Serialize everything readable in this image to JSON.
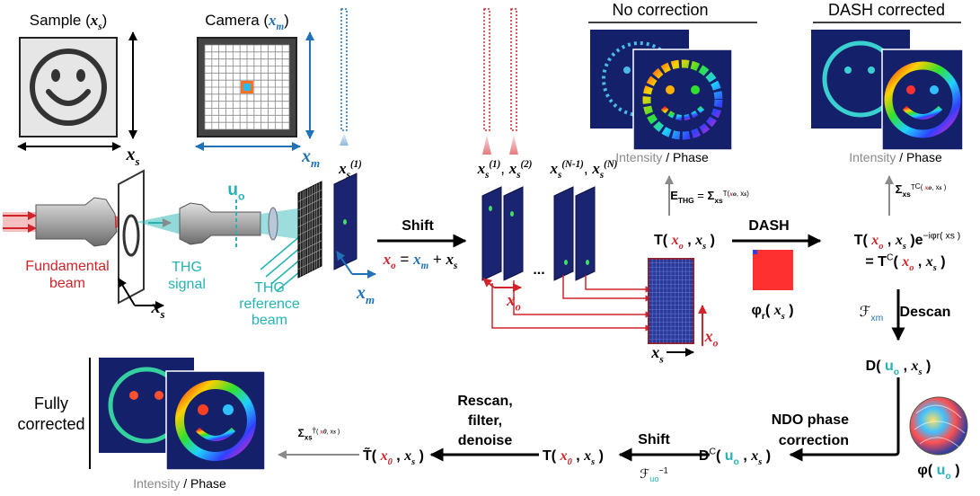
{
  "labels": {
    "sample_label": [
      "Sample (",
      "x",
      "s",
      ")"
    ],
    "camera_label": [
      "Camera (",
      "x",
      "m",
      ")"
    ],
    "sample_axis": [
      "x",
      "s"
    ],
    "camera_axis": [
      "x",
      "m"
    ],
    "plane1_label": [
      "x",
      "s",
      "(1)"
    ],
    "planes12_label": [
      "x",
      "s",
      "(1)",
      ", ",
      "x",
      "s",
      "(2)"
    ],
    "planesN_label": [
      "x",
      "s",
      "(N-1)",
      ", ",
      "x",
      "s",
      "(N)"
    ],
    "no_correction": [
      "No correction"
    ],
    "dash_corrected": [
      "DASH corrected"
    ],
    "ip_no_correction": [
      "Intensity",
      " / Phase"
    ],
    "ip_dash": [
      "Intensity",
      " / Phase"
    ],
    "ip_fully": [
      "Intensity",
      " / Phase"
    ],
    "uo_label": [
      "u",
      "o"
    ],
    "fundamental_1": [
      "Fundamental"
    ],
    "fundamental_2": [
      "beam"
    ],
    "thg_signal_1": [
      "THG"
    ],
    "thg_signal_2": [
      "signal"
    ],
    "thg_ref_1": [
      "THG"
    ],
    "thg_ref_2": [
      "reference"
    ],
    "thg_ref_3": [
      "beam"
    ],
    "sample_stage_axis": [
      "x",
      "s"
    ],
    "plane_axis": [
      "x",
      "m"
    ],
    "shift_1": [
      "Shift"
    ],
    "shift_formula": [
      "x",
      "o",
      " = ",
      "x",
      "m",
      " + ",
      "x",
      "s"
    ],
    "ellipsis": [
      "..."
    ],
    "xo_label": [
      "x",
      "o"
    ],
    "t_img_xo": [
      "x",
      "o"
    ],
    "t_img_xs": [
      "x",
      "s"
    ],
    "e_thg": [
      "E",
      "THG",
      " = ",
      "Σ",
      "x",
      "s",
      "T(",
      "x",
      "o",
      ", ",
      "x",
      "s",
      ")"
    ],
    "t_xo_xs": [
      "T( ",
      "x",
      "o",
      " , ",
      "x",
      "s",
      " )"
    ],
    "dash": [
      "DASH"
    ],
    "phi_r": [
      "φ",
      "r",
      "( ",
      "x",
      "s",
      " )"
    ],
    "sum_tc": [
      "Σ",
      "x",
      "s",
      "T",
      "C",
      "( ",
      "x",
      "o",
      ", ",
      "x",
      "s",
      " )"
    ],
    "t_phase": [
      "T( ",
      "x",
      "o",
      " , ",
      "x",
      "s",
      " )e",
      "−iφ",
      "r",
      "( ",
      "x",
      "s",
      " )"
    ],
    "tc_eq": [
      "= T",
      "C",
      "( ",
      "x",
      "o",
      " , ",
      "x",
      "s",
      " )"
    ],
    "f_xm": [
      "ℱ",
      "x",
      "m"
    ],
    "descan": [
      "Descan"
    ],
    "d_uo": [
      "D( ",
      "u",
      "o",
      " , ",
      "x",
      "s",
      " )"
    ],
    "ndo_1": [
      "NDO phase"
    ],
    "ndo_2": [
      "correction"
    ],
    "phi_uo": [
      "φ( ",
      "u",
      "o",
      " )"
    ],
    "dc_uo": [
      "D",
      "C",
      "( ",
      "u",
      "o",
      " , ",
      "x",
      "s",
      " )"
    ],
    "shift_2": [
      "Shift"
    ],
    "f_uo_inv": [
      "ℱ",
      "u",
      "o",
      "−1"
    ],
    "t_x0": [
      "T( ",
      "x",
      "0",
      " , ",
      "x",
      "s",
      " )"
    ],
    "rescan_1": [
      "Rescan,"
    ],
    "rescan_2": [
      "filter,"
    ],
    "rescan_3": [
      "denoise"
    ],
    "t_tilde": [
      "T̃( ",
      "x",
      "0",
      " , ",
      "x",
      "s",
      " )"
    ],
    "sum_ttilde": [
      "Σ",
      "x",
      "s",
      "T̃( ",
      "x",
      "0",
      ", ",
      "x",
      "s",
      " )"
    ],
    "fully_1": [
      "Fully"
    ],
    "fully_2": [
      "corrected"
    ]
  }
}
